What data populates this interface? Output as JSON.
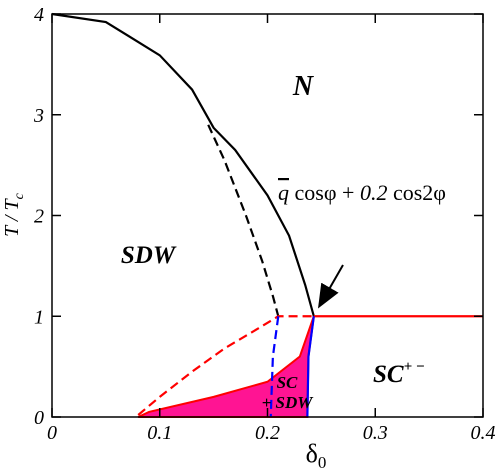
{
  "chart_data": {
    "type": "line",
    "xlim": [
      0,
      0.4
    ],
    "ylim": [
      0,
      4
    ],
    "xticks": [
      0,
      0.1,
      0.2,
      0.3,
      0.4
    ],
    "yticks": [
      0,
      1,
      2,
      3,
      4
    ],
    "xlabel": {
      "base": "δ",
      "sub": "0"
    },
    "ylabel": {
      "base": "T / T",
      "sub": "c"
    },
    "series": [
      {
        "style": "fill",
        "color": "#ff1493",
        "x": [
          0.08,
          0.09,
          0.15,
          0.2,
          0.23,
          0.243,
          0.238,
          0.237
        ],
        "values": [
          0,
          0.05,
          0.2,
          0.35,
          0.6,
          1.0,
          0.6,
          0
        ]
      },
      {
        "style": "solid",
        "color": "#000000",
        "x": [
          0,
          0.05,
          0.1,
          0.13,
          0.15,
          0.17,
          0.2,
          0.22,
          0.235,
          0.243
        ],
        "values": [
          4.0,
          3.92,
          3.59,
          3.25,
          2.87,
          2.65,
          2.2,
          1.8,
          1.31,
          1.0
        ]
      },
      {
        "style": "dashed",
        "color": "#000000",
        "x": [
          0.145,
          0.16,
          0.18,
          0.195,
          0.205,
          0.21
        ],
        "values": [
          2.9,
          2.55,
          2.0,
          1.55,
          1.2,
          1.0
        ]
      },
      {
        "style": "solid",
        "color": "#ff0000",
        "x": [
          0.243,
          0.4
        ],
        "values": [
          1.0,
          1.0
        ]
      },
      {
        "style": "dashed",
        "color": "#ff0000",
        "x": [
          0.08,
          0.1,
          0.13,
          0.16,
          0.19,
          0.21,
          0.243
        ],
        "values": [
          0.02,
          0.2,
          0.45,
          0.68,
          0.87,
          1.0,
          1.0
        ]
      },
      {
        "style": "dashed",
        "color": "#0000ff",
        "x": [
          0.21,
          0.205,
          0.203
        ],
        "values": [
          1.0,
          0.6,
          0
        ]
      },
      {
        "style": "solid",
        "color": "#0000ff",
        "x": [
          0.243,
          0.238,
          0.237
        ],
        "values": [
          1.0,
          0.6,
          0
        ]
      }
    ],
    "annotations": {
      "n": "N",
      "sdw": "SDW",
      "sc": {
        "base": "SC",
        "sup": "+ −"
      },
      "coexist": [
        "SC",
        "+ SDW"
      ],
      "formula": [
        "q",
        " cosφ + ",
        "0.2",
        " cos2φ"
      ]
    }
  }
}
